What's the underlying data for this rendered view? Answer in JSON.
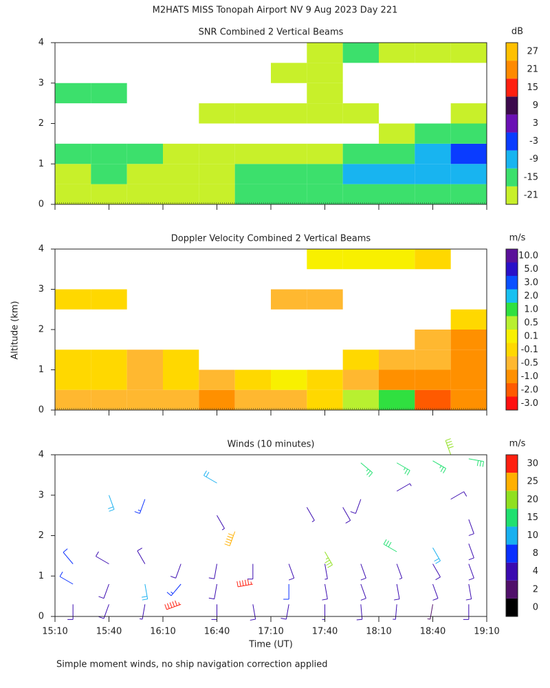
{
  "title": "M2HATS MISS Tonopah Airport NV   9 Aug 2023 Day 221",
  "ylabel": "Altitude (km)",
  "xlabel": "Time (UT)",
  "note": "Simple moment winds, no ship navigation correction applied",
  "chart_data": [
    {
      "type": "heatmap",
      "title": "SNR Combined 2 Vertical Beams",
      "xlim": [
        910,
        1150
      ],
      "ylim": [
        0,
        4
      ],
      "yticks": [
        0,
        1,
        2,
        3,
        4
      ],
      "x": [
        920,
        940,
        960,
        980,
        1000,
        1020,
        1040,
        1060,
        1080,
        1100,
        1120,
        1140
      ],
      "y": [
        0.25,
        0.75,
        1.25,
        1.75,
        2.25,
        2.75,
        3.25,
        3.75
      ],
      "values": [
        [
          -18,
          -18,
          -18,
          -18,
          -18,
          -15,
          -15,
          -15,
          -12,
          -12,
          -12,
          -12
        ],
        [
          -18,
          -15,
          -18,
          -18,
          -18,
          -15,
          -12,
          -12,
          -9,
          -9,
          -9,
          -9
        ],
        [
          -15,
          -15,
          -15,
          -18,
          -18,
          -18,
          -18,
          -18,
          -15,
          -12,
          -6,
          -3
        ],
        [
          null,
          null,
          null,
          null,
          null,
          null,
          null,
          null,
          null,
          -18,
          -15,
          -12
        ],
        [
          null,
          null,
          null,
          null,
          -21,
          -21,
          -21,
          -21,
          -21,
          null,
          null,
          -18
        ],
        [
          -15,
          -15,
          null,
          null,
          null,
          null,
          null,
          -21,
          null,
          null,
          null,
          null
        ],
        [
          null,
          null,
          null,
          null,
          null,
          null,
          -21,
          -21,
          null,
          null,
          null,
          null
        ],
        [
          null,
          null,
          null,
          null,
          null,
          null,
          null,
          -18,
          -15,
          -18,
          -18,
          -21
        ]
      ],
      "colorbar": {
        "label": "dB",
        "levels": [
          -21,
          -15,
          -9,
          -3,
          3,
          9,
          15,
          21,
          27
        ],
        "colors": [
          "#c8f02a",
          "#3ce06c",
          "#18b4f0",
          "#0a3cff",
          "#6a10b4",
          "#3c0a4c",
          "#ff2010",
          "#ff8a00",
          "#ffc000"
        ]
      }
    },
    {
      "type": "heatmap",
      "title": "Doppler Velocity Combined 2 Vertical Beams",
      "xlim": [
        910,
        1150
      ],
      "ylim": [
        0,
        4
      ],
      "yticks": [
        0,
        1,
        2,
        3,
        4
      ],
      "x": [
        920,
        940,
        960,
        980,
        1000,
        1020,
        1040,
        1060,
        1080,
        1100,
        1120,
        1140
      ],
      "y": [
        0.25,
        0.75,
        1.25,
        1.75,
        2.25,
        2.75,
        3.25,
        3.75
      ],
      "values": [
        [
          -0.5,
          -0.5,
          -0.5,
          -0.5,
          -1,
          -0.5,
          -0.5,
          -0.1,
          0.5,
          1,
          -2,
          -1
        ],
        [
          -0.3,
          -0.3,
          -0.5,
          -0.3,
          -0.5,
          -0.3,
          0.1,
          -0.3,
          -0.5,
          -1,
          -1,
          -1
        ],
        [
          -0.1,
          -0.3,
          -0.5,
          -0.3,
          null,
          null,
          null,
          null,
          -0.3,
          -0.5,
          -0.5,
          -1
        ],
        [
          null,
          null,
          null,
          null,
          null,
          null,
          null,
          null,
          null,
          null,
          -0.5,
          -1
        ],
        [
          null,
          null,
          null,
          null,
          null,
          null,
          null,
          null,
          null,
          null,
          null,
          -0.3
        ],
        [
          -0.1,
          -0.1,
          null,
          null,
          null,
          null,
          -0.5,
          -0.5,
          null,
          null,
          null,
          null
        ],
        [
          null,
          null,
          null,
          null,
          null,
          null,
          null,
          null,
          null,
          null,
          null,
          null
        ],
        [
          null,
          null,
          null,
          null,
          null,
          null,
          null,
          0.1,
          0.1,
          0.1,
          -0.1,
          null
        ]
      ],
      "colorbar": {
        "label": "m/s",
        "levels": [
          {
            "value": -3,
            "label": "-3.0"
          },
          {
            "value": -2,
            "label": "-2.0"
          },
          {
            "value": -1,
            "label": "-1.0"
          },
          -0.5,
          -0.1,
          0.1,
          0.5,
          {
            "value": 1,
            "label": "1.0"
          },
          {
            "value": 2,
            "label": "2.0"
          },
          {
            "value": 3,
            "label": "3.0"
          },
          {
            "value": 5,
            "label": "5.0"
          },
          {
            "value": 10,
            "label": "10.0"
          }
        ],
        "colors": [
          "#ff1010",
          "#ff5a00",
          "#ff9000",
          "#ffb830",
          "#ffd800",
          "#f8f000",
          "#b8f030",
          "#30e040",
          "#18c0f0",
          "#0a50ff",
          "#2a10c8",
          "#5a109a"
        ]
      }
    },
    {
      "type": "barbs",
      "title": "Winds (10 minutes)",
      "xlim": [
        910,
        1150
      ],
      "ylim": [
        0,
        4
      ],
      "yticks": [
        0,
        1,
        2,
        3,
        4
      ],
      "xticks": [
        {
          "value": 910,
          "label": "15:10"
        },
        {
          "value": 940,
          "label": "15:40"
        },
        {
          "value": 970,
          "label": "16:10"
        },
        {
          "value": 1000,
          "label": "16:40"
        },
        {
          "value": 1030,
          "label": "17:10"
        },
        {
          "value": 1060,
          "label": "17:40"
        },
        {
          "value": 1090,
          "label": "18:10"
        },
        {
          "value": 1120,
          "label": "18:40"
        },
        {
          "value": 1150,
          "label": "19:10"
        }
      ],
      "x": [
        920,
        940,
        960,
        980,
        1000,
        1020,
        1040,
        1060,
        1080,
        1100,
        1120,
        1140,
        920,
        940,
        960,
        980,
        1000,
        1020,
        1040,
        1060,
        1080,
        1100,
        1120,
        1140,
        920,
        940,
        960,
        980,
        1000,
        1020,
        1040,
        1060,
        1080,
        1100,
        1120,
        1140,
        940,
        960,
        1000,
        1050,
        1080,
        1100,
        1130,
        1000,
        1010,
        1070,
        1140,
        1080,
        1100,
        1120,
        1140,
        1130,
        1060,
        1100,
        1120,
        1140
      ],
      "y": [
        0.3,
        0.3,
        0.3,
        0.3,
        0.3,
        0.3,
        0.3,
        0.3,
        0.3,
        0.3,
        0.3,
        0.3,
        0.8,
        0.8,
        0.8,
        0.8,
        0.8,
        0.8,
        0.8,
        0.8,
        0.8,
        0.8,
        0.8,
        0.8,
        1.3,
        1.3,
        1.3,
        1.3,
        1.3,
        1.3,
        1.3,
        1.3,
        1.3,
        1.3,
        1.3,
        1.3,
        3,
        2.9,
        3.3,
        2.7,
        2.9,
        3.1,
        2.9,
        2.5,
        2.1,
        2.7,
        2.4,
        3.8,
        3.8,
        3.85,
        3.9,
        4,
        1.6,
        1.6,
        1.7,
        1.8
      ],
      "speed": [
        5,
        6,
        4,
        28,
        6,
        5,
        5,
        4,
        5,
        4,
        3,
        5,
        7,
        6,
        12,
        8,
        6,
        28,
        7,
        6,
        6,
        5,
        6,
        6,
        7,
        6,
        5,
        6,
        5,
        6,
        5,
        4,
        5,
        4,
        5,
        6,
        10,
        9,
        12,
        4,
        5,
        4,
        6,
        4,
        25,
        5,
        5,
        14,
        14,
        14,
        15,
        22,
        18,
        16,
        12,
        6
      ],
      "direction": [
        180,
        200,
        190,
        250,
        180,
        170,
        190,
        180,
        175,
        185,
        190,
        180,
        300,
        200,
        170,
        220,
        190,
        260,
        180,
        170,
        160,
        170,
        160,
        170,
        320,
        300,
        330,
        200,
        190,
        180,
        160,
        170,
        160,
        160,
        150,
        160,
        160,
        200,
        300,
        150,
        200,
        60,
        60,
        150,
        200,
        150,
        160,
        130,
        120,
        120,
        100,
        340,
        150,
        300,
        150,
        160
      ],
      "colorbar": {
        "label": "m/s",
        "levels": [
          0,
          2,
          4,
          8,
          10,
          15,
          20,
          25,
          30
        ],
        "colors": [
          "#000000",
          "#50106a",
          "#3a0ab0",
          "#0a30ff",
          "#18b0f0",
          "#20e070",
          "#90e020",
          "#ffb000",
          "#ff2010"
        ]
      }
    }
  ]
}
